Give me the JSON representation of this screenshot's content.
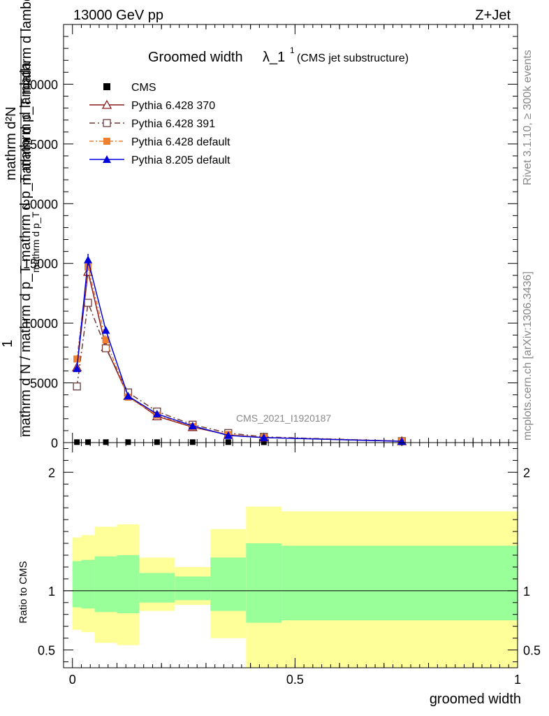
{
  "header": {
    "left": "13000 GeV pp",
    "right": "Z+Jet"
  },
  "title": {
    "main": "Groomed width",
    "symbol": "λ_1",
    "superscript": "1",
    "sub": "(CMS jet substructure)"
  },
  "side_labels": {
    "rivet": "Rivet 3.1.10, ≥ 300k events",
    "mcplots": "mcplots.cern.ch [arXiv:1306.3436]"
  },
  "watermark": "CMS_2021_I1920187",
  "chart_data": [
    {
      "type": "line",
      "panel": "main",
      "xlabel": "groomed width",
      "ylabel_parts": {
        "one": "1",
        "numerator": "mathrm d²N",
        "denominator": "mathrm d N / mathrm d p_T mathrm d p_T mathrm d lambda",
        "overlay_top": "mathrm d p_T mathrm d lambda",
        "overlay_bottom": "mathrm d p_T"
      },
      "xlim": [
        -0.02,
        1.0
      ],
      "ylim": [
        0,
        35000
      ],
      "yticks": [
        0,
        5000,
        10000,
        15000,
        20000,
        25000,
        30000
      ],
      "ytick_labels": [
        "0",
        "5000",
        "10000",
        "15000",
        "20000",
        "25000",
        "30000"
      ],
      "legend_position": "top-left",
      "series": [
        {
          "name": "CMS",
          "color": "#000000",
          "marker": "square-filled",
          "x": [
            0.01,
            0.035,
            0.075,
            0.125,
            0.19,
            0.27,
            0.35,
            0.43,
            0.74
          ],
          "values": [
            40,
            40,
            40,
            40,
            40,
            40,
            40,
            30,
            20
          ]
        },
        {
          "name": "Pythia 6.428 370",
          "color": "#8b1a1a",
          "marker": "triangle-open",
          "x": [
            0.01,
            0.035,
            0.075,
            0.125,
            0.19,
            0.27,
            0.35,
            0.43,
            0.74
          ],
          "values": [
            6300,
            14300,
            8000,
            3900,
            2200,
            1300,
            650,
            420,
            120
          ]
        },
        {
          "name": "Pythia 6.428 391",
          "color": "#6e3a3a",
          "marker": "square-open",
          "x": [
            0.01,
            0.035,
            0.075,
            0.125,
            0.19,
            0.27,
            0.35,
            0.43,
            0.74
          ],
          "values": [
            4700,
            11700,
            7900,
            4200,
            2600,
            1500,
            800,
            480,
            120
          ]
        },
        {
          "name": "Pythia 6.428 default",
          "color": "#f08030",
          "marker": "square-filled",
          "x": [
            0.01,
            0.035,
            0.075,
            0.125,
            0.19,
            0.27,
            0.35,
            0.43,
            0.74
          ],
          "values": [
            7000,
            14700,
            8600,
            3800,
            2300,
            1350,
            680,
            430,
            120
          ]
        },
        {
          "name": "Pythia 8.205 default",
          "color": "#0000dd",
          "marker": "triangle-filled",
          "x": [
            0.01,
            0.035,
            0.075,
            0.125,
            0.19,
            0.27,
            0.35,
            0.43,
            0.74
          ],
          "values": [
            6200,
            15300,
            9400,
            3900,
            2400,
            1400,
            600,
            420,
            110
          ]
        }
      ]
    },
    {
      "type": "area",
      "panel": "ratio",
      "ylabel": "Ratio to CMS",
      "xlabel": "groomed width",
      "xlim": [
        -0.02,
        1.0
      ],
      "ylim": [
        0.35,
        2.25
      ],
      "yticks": [
        0.5,
        1,
        2
      ],
      "ytick_labels": [
        "0.5",
        "1",
        "2"
      ],
      "xticks": [
        0,
        0.5,
        1
      ],
      "xtick_labels": [
        "0",
        "0.5",
        "1"
      ],
      "reference_line": 1,
      "bands": {
        "outer_color": "#ffff99",
        "inner_color": "#99ff99",
        "bins": [
          {
            "x0": 0.0,
            "x1": 0.02,
            "outer": [
              0.67,
              1.45
            ],
            "inner": [
              0.86,
              1.25
            ]
          },
          {
            "x0": 0.02,
            "x1": 0.05,
            "outer": [
              0.65,
              1.47
            ],
            "inner": [
              0.85,
              1.26
            ]
          },
          {
            "x0": 0.05,
            "x1": 0.1,
            "outer": [
              0.56,
              1.54
            ],
            "inner": [
              0.82,
              1.29
            ]
          },
          {
            "x0": 0.1,
            "x1": 0.15,
            "outer": [
              0.54,
              1.56
            ],
            "inner": [
              0.81,
              1.3
            ]
          },
          {
            "x0": 0.15,
            "x1": 0.23,
            "outer": [
              0.83,
              1.28
            ],
            "inner": [
              0.9,
              1.15
            ]
          },
          {
            "x0": 0.23,
            "x1": 0.31,
            "outer": [
              0.88,
              1.2
            ],
            "inner": [
              0.92,
              1.12
            ]
          },
          {
            "x0": 0.31,
            "x1": 0.39,
            "outer": [
              0.6,
              1.52
            ],
            "inner": [
              0.83,
              1.28
            ]
          },
          {
            "x0": 0.39,
            "x1": 0.47,
            "outer": [
              0.35,
              1.71
            ],
            "inner": [
              0.73,
              1.4
            ]
          },
          {
            "x0": 0.47,
            "x1": 1.0,
            "outer": [
              0.35,
              1.67
            ],
            "inner": [
              0.75,
              1.38
            ]
          }
        ]
      }
    }
  ]
}
